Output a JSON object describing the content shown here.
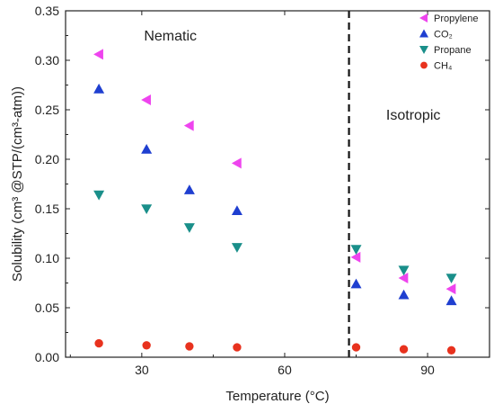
{
  "chart_data": {
    "type": "scatter",
    "xlabel": "Temperature (°C)",
    "ylabel": "Solubility (cm³ @STP/(cm³-atm))",
    "xlim": [
      14,
      103
    ],
    "ylim": [
      0.0,
      0.35
    ],
    "x_ticks": [
      "30",
      "60",
      "90"
    ],
    "y_ticks": [
      "0.00",
      "0.05",
      "0.10",
      "0.15",
      "0.20",
      "0.25",
      "0.30",
      "0.35"
    ],
    "annotations": [
      {
        "text": "Nematic",
        "x": 36,
        "y": 0.32
      },
      {
        "text": "Isotropic",
        "x": 87,
        "y": 0.24
      }
    ],
    "reference_line": {
      "x": 73.5,
      "style": "dashed"
    },
    "legend_position": "top-right",
    "series": [
      {
        "name": "Propylene",
        "marker": "triangle-left",
        "color": "#ee44ee",
        "x": [
          21,
          31,
          40,
          50,
          75,
          85,
          95
        ],
        "y": [
          0.306,
          0.26,
          0.234,
          0.196,
          0.101,
          0.08,
          0.069
        ]
      },
      {
        "name": "CO₂",
        "marker": "triangle-up",
        "color": "#1f3fd0",
        "x": [
          21,
          31,
          40,
          50,
          75,
          85,
          95
        ],
        "y": [
          0.271,
          0.21,
          0.169,
          0.148,
          0.074,
          0.063,
          0.057
        ]
      },
      {
        "name": "Propane",
        "marker": "triangle-down",
        "color": "#1a8f8a",
        "x": [
          21,
          31,
          40,
          50,
          75,
          85,
          95
        ],
        "y": [
          0.164,
          0.15,
          0.131,
          0.111,
          0.109,
          0.088,
          0.08
        ]
      },
      {
        "name": "CH₄",
        "marker": "circle",
        "color": "#e8321e",
        "x": [
          21,
          31,
          40,
          50,
          75,
          85,
          95
        ],
        "y": [
          0.014,
          0.012,
          0.011,
          0.01,
          0.01,
          0.008,
          0.007
        ]
      }
    ]
  }
}
